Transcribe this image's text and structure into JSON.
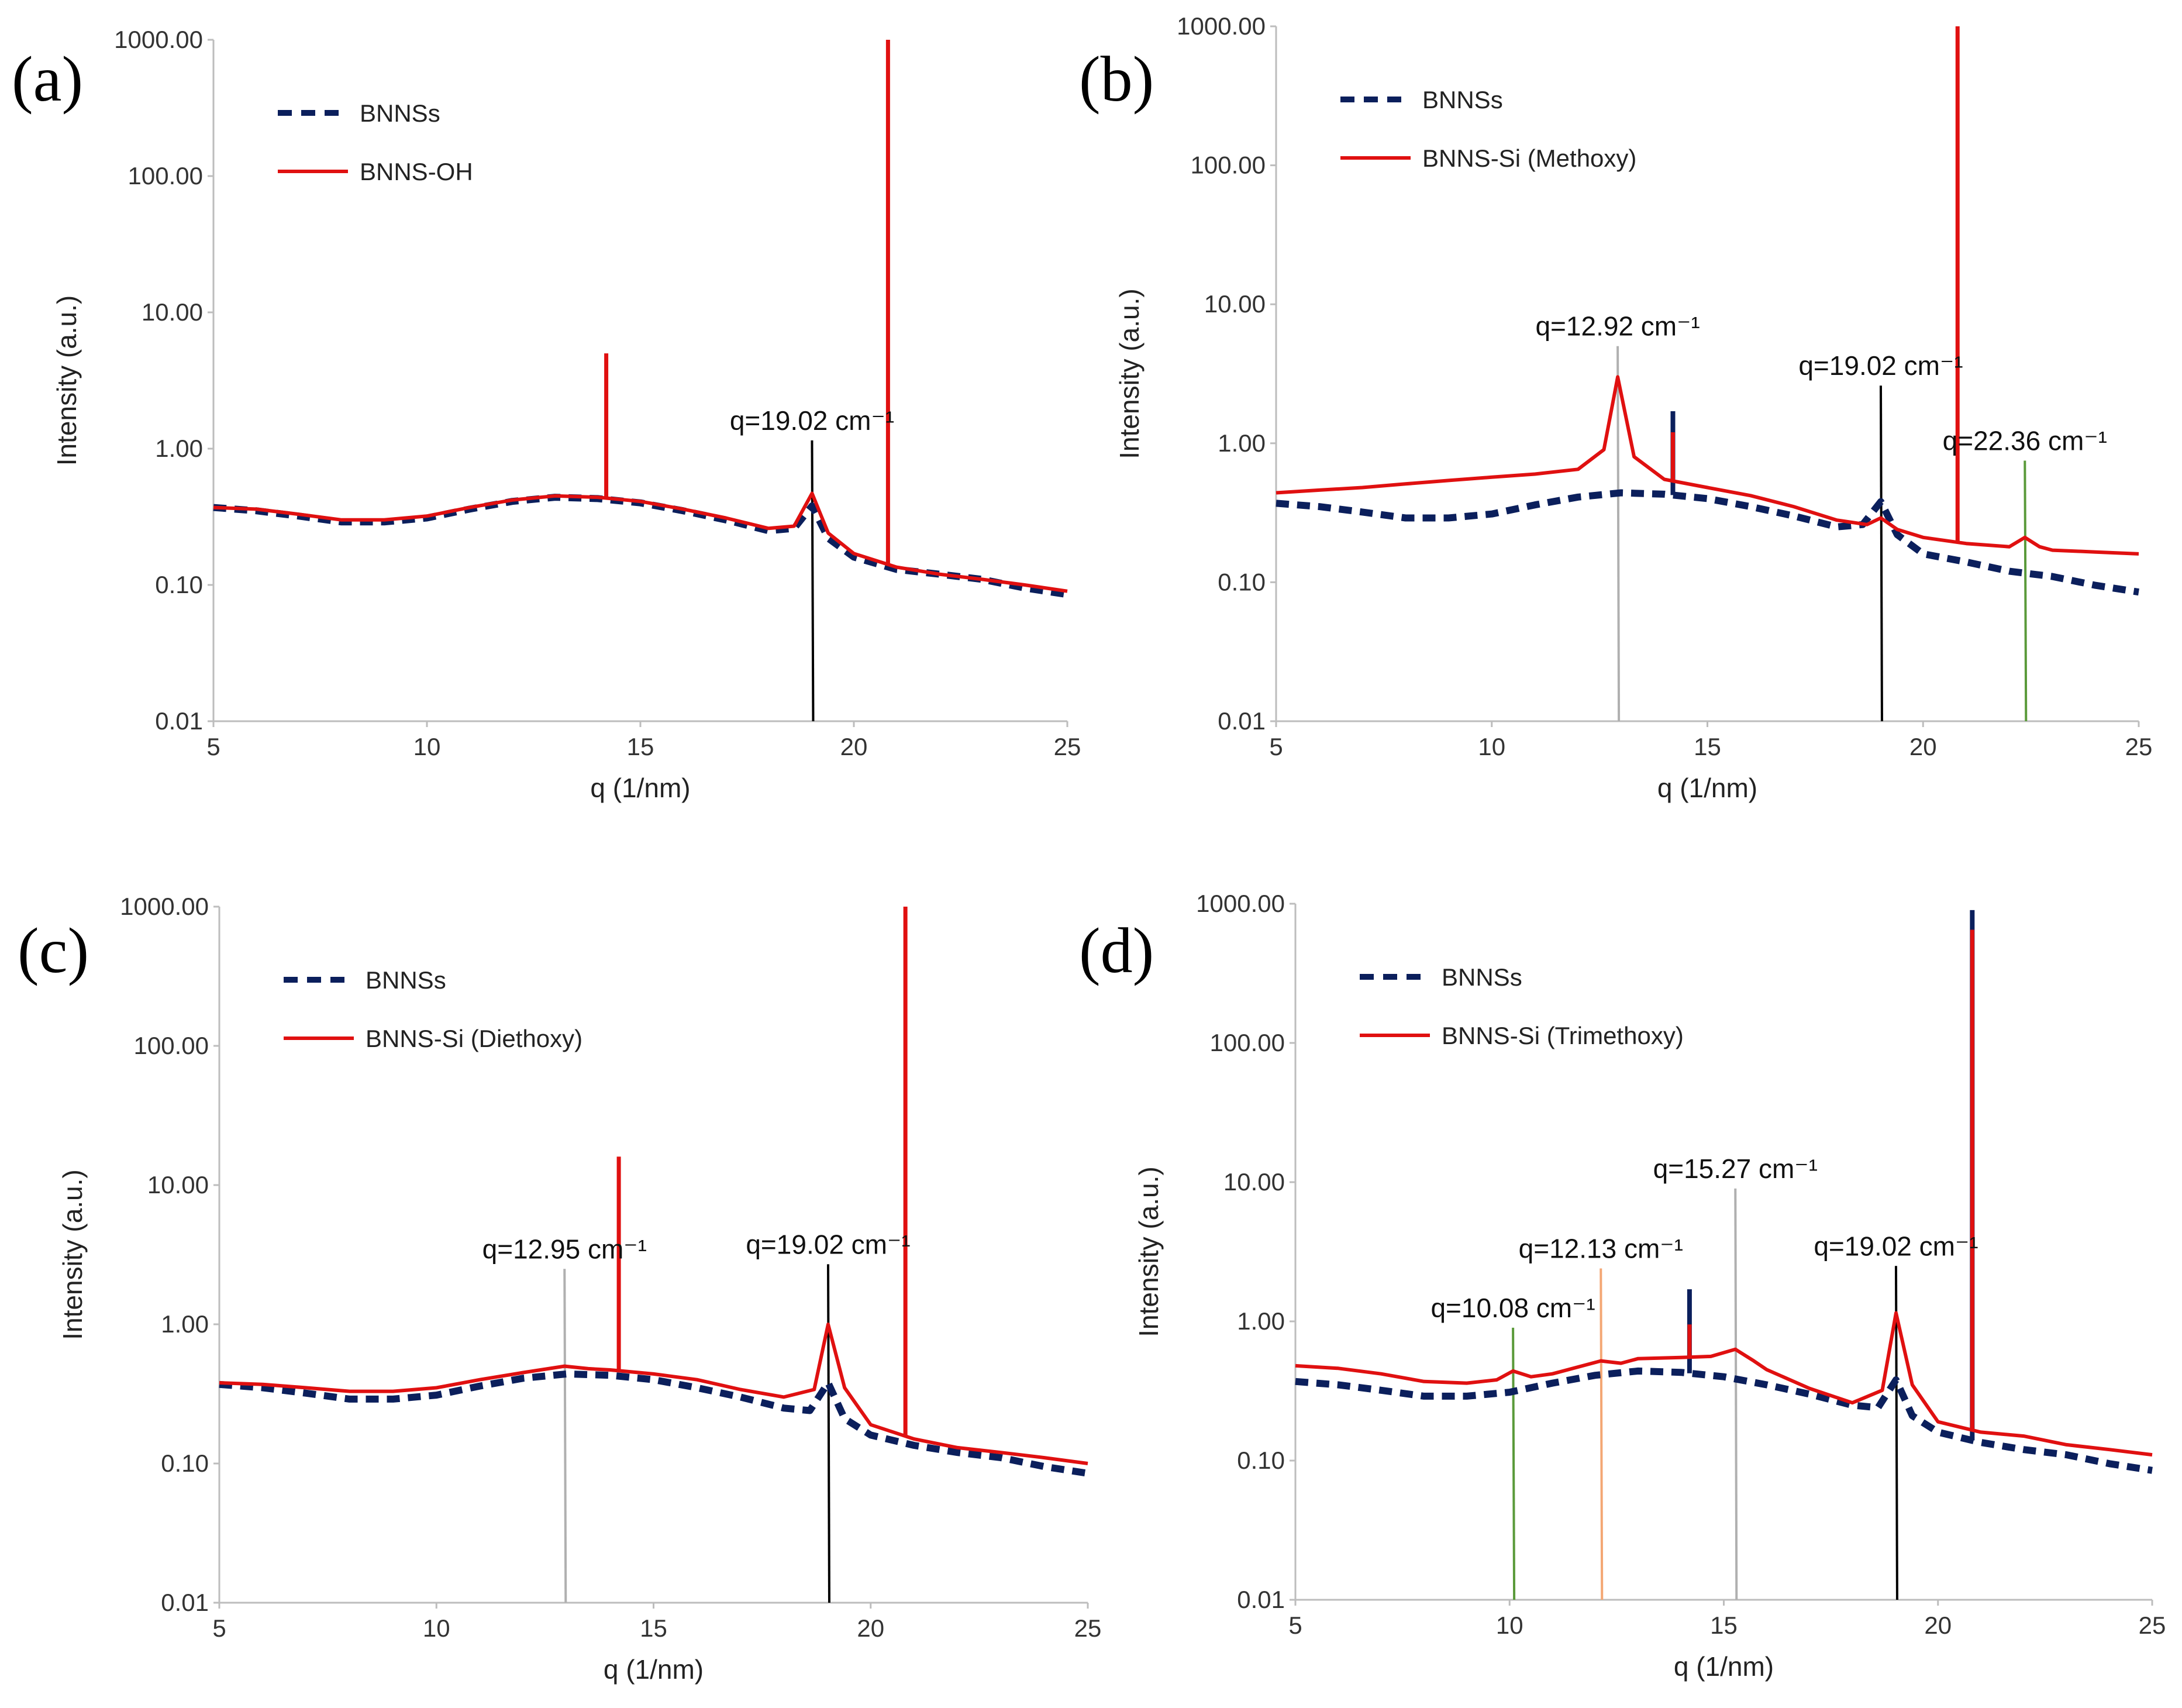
{
  "figure": {
    "series_colors": {
      "BNNSs": "#0b1f5c",
      "modified": "#e01010"
    }
  },
  "chart_data": [
    {
      "panel": "(a)",
      "type": "line",
      "xlabel": "q (1/nm)",
      "ylabel": "Intensity (a.u.)",
      "xlim": [
        5,
        25
      ],
      "ylim": [
        0.01,
        1000
      ],
      "yscale": "log",
      "xticks": [
        "5",
        "10",
        "15",
        "20",
        "25"
      ],
      "yticks": [
        "0.01",
        "0.10",
        "1.00",
        "10.00",
        "100.00",
        "1000.00"
      ],
      "legend": [
        "BNNSs",
        "BNNS-OH"
      ],
      "legend_position": "top-left",
      "series": [
        {
          "name": "BNNSs",
          "style": "dashed",
          "x": [
            5,
            6,
            7,
            8,
            9,
            10,
            11,
            12,
            13,
            14,
            15,
            16,
            17,
            18,
            18.6,
            19.02,
            19.4,
            20,
            21,
            22,
            23,
            24,
            25
          ],
          "y": [
            0.37,
            0.35,
            0.32,
            0.29,
            0.29,
            0.31,
            0.36,
            0.41,
            0.44,
            0.43,
            0.4,
            0.35,
            0.3,
            0.25,
            0.26,
            0.38,
            0.22,
            0.16,
            0.13,
            0.12,
            0.11,
            0.095,
            0.085
          ],
          "spikes": []
        },
        {
          "name": "BNNS-OH",
          "style": "solid",
          "x": [
            5,
            6,
            7,
            8,
            9,
            10,
            11,
            12,
            13,
            14,
            15,
            16,
            17,
            18,
            18.6,
            19.02,
            19.4,
            20,
            21,
            22,
            23,
            24,
            25
          ],
          "y": [
            0.37,
            0.36,
            0.33,
            0.3,
            0.3,
            0.32,
            0.37,
            0.42,
            0.45,
            0.44,
            0.41,
            0.36,
            0.31,
            0.26,
            0.27,
            0.47,
            0.24,
            0.17,
            0.135,
            0.12,
            0.11,
            0.1,
            0.09
          ],
          "spikes": [
            {
              "x": 14.2,
              "y": 5
            },
            {
              "x": 20.8,
              "y": 1000
            }
          ]
        }
      ],
      "annotations": [
        {
          "text": "q=19.02 cm⁻¹",
          "x": 19.02,
          "y_top": 1.15,
          "color": "#000000"
        }
      ]
    },
    {
      "panel": "(b)",
      "type": "line",
      "xlabel": "q (1/nm)",
      "ylabel": "Intensity (a.u.)",
      "xlim": [
        5,
        25
      ],
      "ylim": [
        0.01,
        1000
      ],
      "yscale": "log",
      "xticks": [
        "5",
        "10",
        "15",
        "20",
        "25"
      ],
      "yticks": [
        "0.01",
        "0.10",
        "1.00",
        "10.00",
        "100.00",
        "1000.00"
      ],
      "legend": [
        "BNNSs",
        "BNNS-Si (Methoxy)"
      ],
      "legend_position": "top-left",
      "series": [
        {
          "name": "BNNSs",
          "style": "dashed",
          "x": [
            5,
            6,
            7,
            8,
            9,
            10,
            11,
            12,
            13,
            14,
            15,
            16,
            17,
            18,
            18.6,
            19.02,
            19.4,
            20,
            21,
            22,
            23,
            24,
            25
          ],
          "y": [
            0.37,
            0.35,
            0.32,
            0.29,
            0.29,
            0.31,
            0.36,
            0.41,
            0.44,
            0.43,
            0.4,
            0.35,
            0.3,
            0.25,
            0.26,
            0.38,
            0.22,
            0.16,
            0.14,
            0.12,
            0.11,
            0.095,
            0.085
          ],
          "spikes": [
            {
              "x": 14.2,
              "y": 1.7
            }
          ]
        },
        {
          "name": "BNNS-Si (Methoxy)",
          "style": "solid",
          "x": [
            5,
            6,
            7,
            8,
            9,
            10,
            11,
            12,
            12.6,
            12.92,
            13.3,
            14,
            15,
            16,
            17,
            18,
            18.7,
            19.02,
            19.4,
            20,
            21,
            22,
            22.36,
            22.7,
            23,
            24,
            25
          ],
          "y": [
            0.44,
            0.46,
            0.48,
            0.51,
            0.54,
            0.57,
            0.6,
            0.65,
            0.9,
            3.0,
            0.8,
            0.55,
            0.48,
            0.42,
            0.35,
            0.28,
            0.26,
            0.29,
            0.24,
            0.21,
            0.19,
            0.18,
            0.21,
            0.18,
            0.17,
            0.165,
            0.16
          ],
          "spikes": [
            {
              "x": 14.2,
              "y": 1.2
            },
            {
              "x": 20.8,
              "y": 1000
            }
          ]
        }
      ],
      "annotations": [
        {
          "text": "q=12.92 cm⁻¹",
          "x": 12.92,
          "y_top": 5,
          "color": "#b0b0b0"
        },
        {
          "text": "q=19.02 cm⁻¹",
          "x": 19.02,
          "y_top": 2.6,
          "color": "#000000"
        },
        {
          "text": "q=22.36 cm⁻¹",
          "x": 22.36,
          "y_top": 0.75,
          "color": "#5a9a3a"
        }
      ]
    },
    {
      "panel": "(c)",
      "type": "line",
      "xlabel": "q (1/nm)",
      "ylabel": "Intensity (a.u.)",
      "xlim": [
        5,
        25
      ],
      "ylim": [
        0.01,
        1000
      ],
      "yscale": "log",
      "xticks": [
        "5",
        "10",
        "15",
        "20",
        "25"
      ],
      "yticks": [
        "0.01",
        "0.10",
        "1.00",
        "10.00",
        "100.00",
        "1000.00"
      ],
      "legend": [
        "BNNSs",
        "BNNS-Si (Diethoxy)"
      ],
      "legend_position": "top-left",
      "series": [
        {
          "name": "BNNSs",
          "style": "dashed",
          "x": [
            5,
            6,
            7,
            8,
            9,
            10,
            11,
            12,
            13,
            14,
            15,
            16,
            17,
            18,
            18.6,
            19.02,
            19.4,
            20,
            21,
            22,
            23,
            24,
            25
          ],
          "y": [
            0.37,
            0.35,
            0.32,
            0.29,
            0.29,
            0.31,
            0.36,
            0.41,
            0.44,
            0.43,
            0.4,
            0.35,
            0.3,
            0.25,
            0.24,
            0.38,
            0.21,
            0.16,
            0.135,
            0.12,
            0.11,
            0.095,
            0.085
          ],
          "spikes": []
        },
        {
          "name": "BNNS-Si (Diethoxy)",
          "style": "solid",
          "x": [
            5,
            6,
            7,
            8,
            9,
            10,
            11,
            12,
            12.95,
            13.5,
            14,
            15,
            16,
            17,
            18,
            18.7,
            19.02,
            19.4,
            20,
            21,
            22,
            23,
            24,
            25
          ],
          "y": [
            0.38,
            0.37,
            0.35,
            0.33,
            0.33,
            0.35,
            0.4,
            0.45,
            0.5,
            0.48,
            0.47,
            0.44,
            0.4,
            0.34,
            0.3,
            0.34,
            1.0,
            0.35,
            0.19,
            0.15,
            0.13,
            0.12,
            0.11,
            0.1
          ],
          "spikes": [
            {
              "x": 14.2,
              "y": 16
            },
            {
              "x": 20.8,
              "y": 1000
            }
          ]
        }
      ],
      "annotations": [
        {
          "text": "q=12.95 cm⁻¹",
          "x": 12.95,
          "y_top": 2.5,
          "color": "#b0b0b0"
        },
        {
          "text": "q=19.02 cm⁻¹",
          "x": 19.02,
          "y_top": 2.7,
          "color": "#000000"
        }
      ]
    },
    {
      "panel": "(d)",
      "type": "line",
      "xlabel": "q (1/nm)",
      "ylabel": "Intensity (a.u.)",
      "xlim": [
        5,
        25
      ],
      "ylim": [
        0.01,
        1000
      ],
      "yscale": "log",
      "xticks": [
        "5",
        "10",
        "15",
        "20",
        "25"
      ],
      "yticks": [
        "0.01",
        "0.10",
        "1.00",
        "10.00",
        "100.00",
        "1000.00"
      ],
      "legend": [
        "BNNSs",
        "BNNS-Si (Trimethoxy)"
      ],
      "legend_position": "top-left",
      "series": [
        {
          "name": "BNNSs",
          "style": "dashed",
          "x": [
            5,
            6,
            7,
            8,
            9,
            10,
            11,
            12,
            13,
            14,
            15,
            16,
            17,
            18,
            18.6,
            19.02,
            19.4,
            20,
            21,
            22,
            23,
            24,
            25
          ],
          "y": [
            0.37,
            0.35,
            0.32,
            0.29,
            0.29,
            0.31,
            0.36,
            0.41,
            0.44,
            0.43,
            0.4,
            0.35,
            0.3,
            0.25,
            0.24,
            0.38,
            0.21,
            0.16,
            0.135,
            0.12,
            0.11,
            0.095,
            0.085
          ],
          "spikes": [
            {
              "x": 14.2,
              "y": 1.7
            },
            {
              "x": 20.8,
              "y": 900
            }
          ]
        },
        {
          "name": "BNNS-Si (Trimethoxy)",
          "style": "solid",
          "x": [
            5,
            6,
            7,
            8,
            9,
            9.7,
            10.08,
            10.5,
            11,
            12.13,
            12.6,
            13,
            14,
            14.7,
            15.27,
            15.7,
            16,
            17,
            18,
            18.7,
            19.02,
            19.4,
            20,
            21,
            22,
            23,
            24,
            25
          ],
          "y": [
            0.48,
            0.46,
            0.42,
            0.37,
            0.36,
            0.38,
            0.44,
            0.4,
            0.42,
            0.52,
            0.5,
            0.54,
            0.55,
            0.56,
            0.63,
            0.52,
            0.45,
            0.33,
            0.26,
            0.32,
            1.15,
            0.35,
            0.19,
            0.16,
            0.15,
            0.13,
            0.12,
            0.11
          ],
          "spikes": [
            {
              "x": 14.2,
              "y": 0.95
            },
            {
              "x": 20.8,
              "y": 650
            }
          ]
        }
      ],
      "annotations": [
        {
          "text": "q=10.08 cm⁻¹",
          "x": 10.08,
          "y_top": 0.9,
          "color": "#5a9a3a"
        },
        {
          "text": "q=12.13 cm⁻¹",
          "x": 12.13,
          "y_top": 2.4,
          "color": "#f4a774"
        },
        {
          "text": "q=15.27 cm⁻¹",
          "x": 15.27,
          "y_top": 9,
          "color": "#b0b0b0"
        },
        {
          "text": "q=19.02 cm⁻¹",
          "x": 19.02,
          "y_top": 2.5,
          "color": "#000000"
        }
      ]
    }
  ]
}
